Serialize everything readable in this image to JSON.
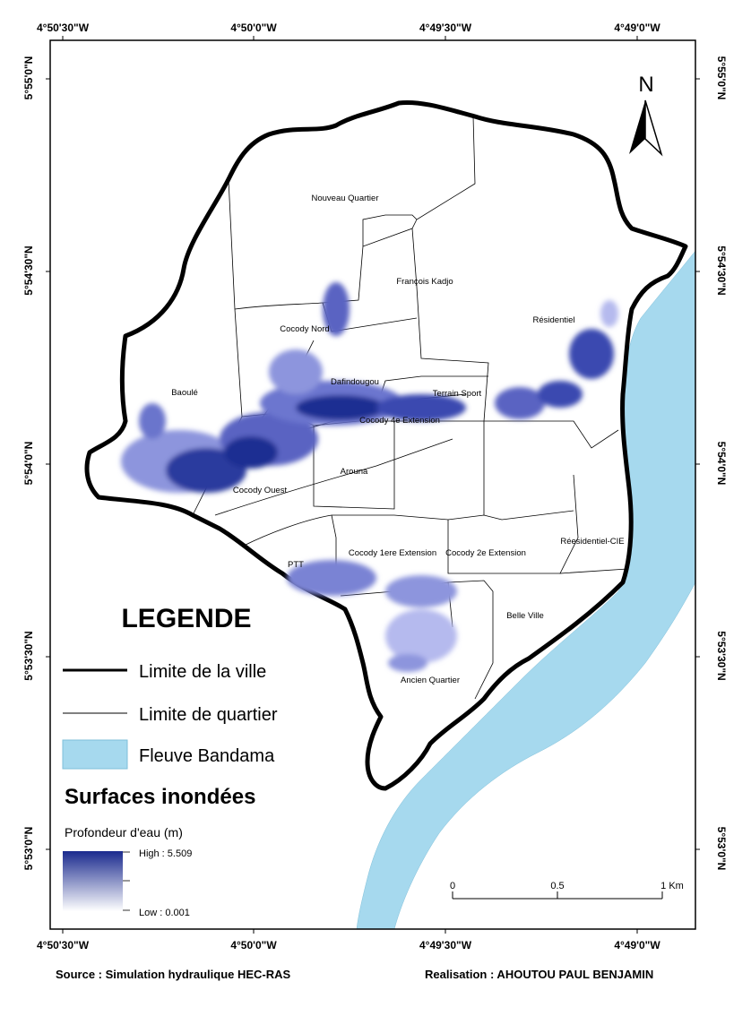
{
  "map": {
    "coords_top": [
      "4°50'30\"W",
      "4°50'0\"W",
      "4°49'30\"W",
      "4°49'0\"W"
    ],
    "coords_bottom": [
      "4°50'30\"W",
      "4°50'0\"W",
      "4°49'30\"W",
      "4°49'0\"W"
    ],
    "coords_left": [
      "5°55'0\"N",
      "5°54'30\"N",
      "5°54'0\"N",
      "5°53'30\"N",
      "5°53'0\"N"
    ],
    "coords_right": [
      "5°55'0\"N",
      "5°54'30\"N",
      "5°54'0\"N",
      "5°53'30\"N",
      "5°53'0\"N"
    ],
    "north_label": "N",
    "districts": {
      "nouveau_quartier": "Nouveau Quartier",
      "francois_kadjo": "François Kadjo",
      "residentiel": "Résidentiel",
      "cocody_nord": "Cocody Nord",
      "dafindougou": "Dafindougou",
      "terrain_sport": "Terrain Sport",
      "baoule": "Baoulé",
      "cocody_4e": "Cocody 4e Extension",
      "arouna": "Arouna",
      "cocody_ouest": "Cocody Ouest",
      "ptt": "PTT",
      "cocody_1ere": "Cocody 1ere Extension",
      "cocody_2e": "Cocody 2e Extension",
      "residentiel_cie": "Réesidentiel-CIE",
      "belle_ville": "Belle Ville",
      "ancien_quartier": "Ancien Quartier"
    },
    "legend": {
      "title": "LEGENDE",
      "city_limit": "Limite de la ville",
      "district_limit": "Limite de quartier",
      "river": "Fleuve Bandama",
      "flood_title": "Surfaces inondées",
      "depth_label": "Profondeur d'eau (m)",
      "high": "High : 5.509",
      "low": "Low : 0.001"
    },
    "scale": {
      "labels": [
        "0",
        "0.5",
        "1 Km"
      ]
    },
    "colors": {
      "river": "#a6d9ee",
      "flood_high": "#1a2a8e",
      "flood_low": "#c9ccf2"
    }
  },
  "footer": {
    "source": "Source : Simulation hydraulique HEC-RAS",
    "realisation": "Realisation : AHOUTOU PAUL BENJAMIN"
  }
}
